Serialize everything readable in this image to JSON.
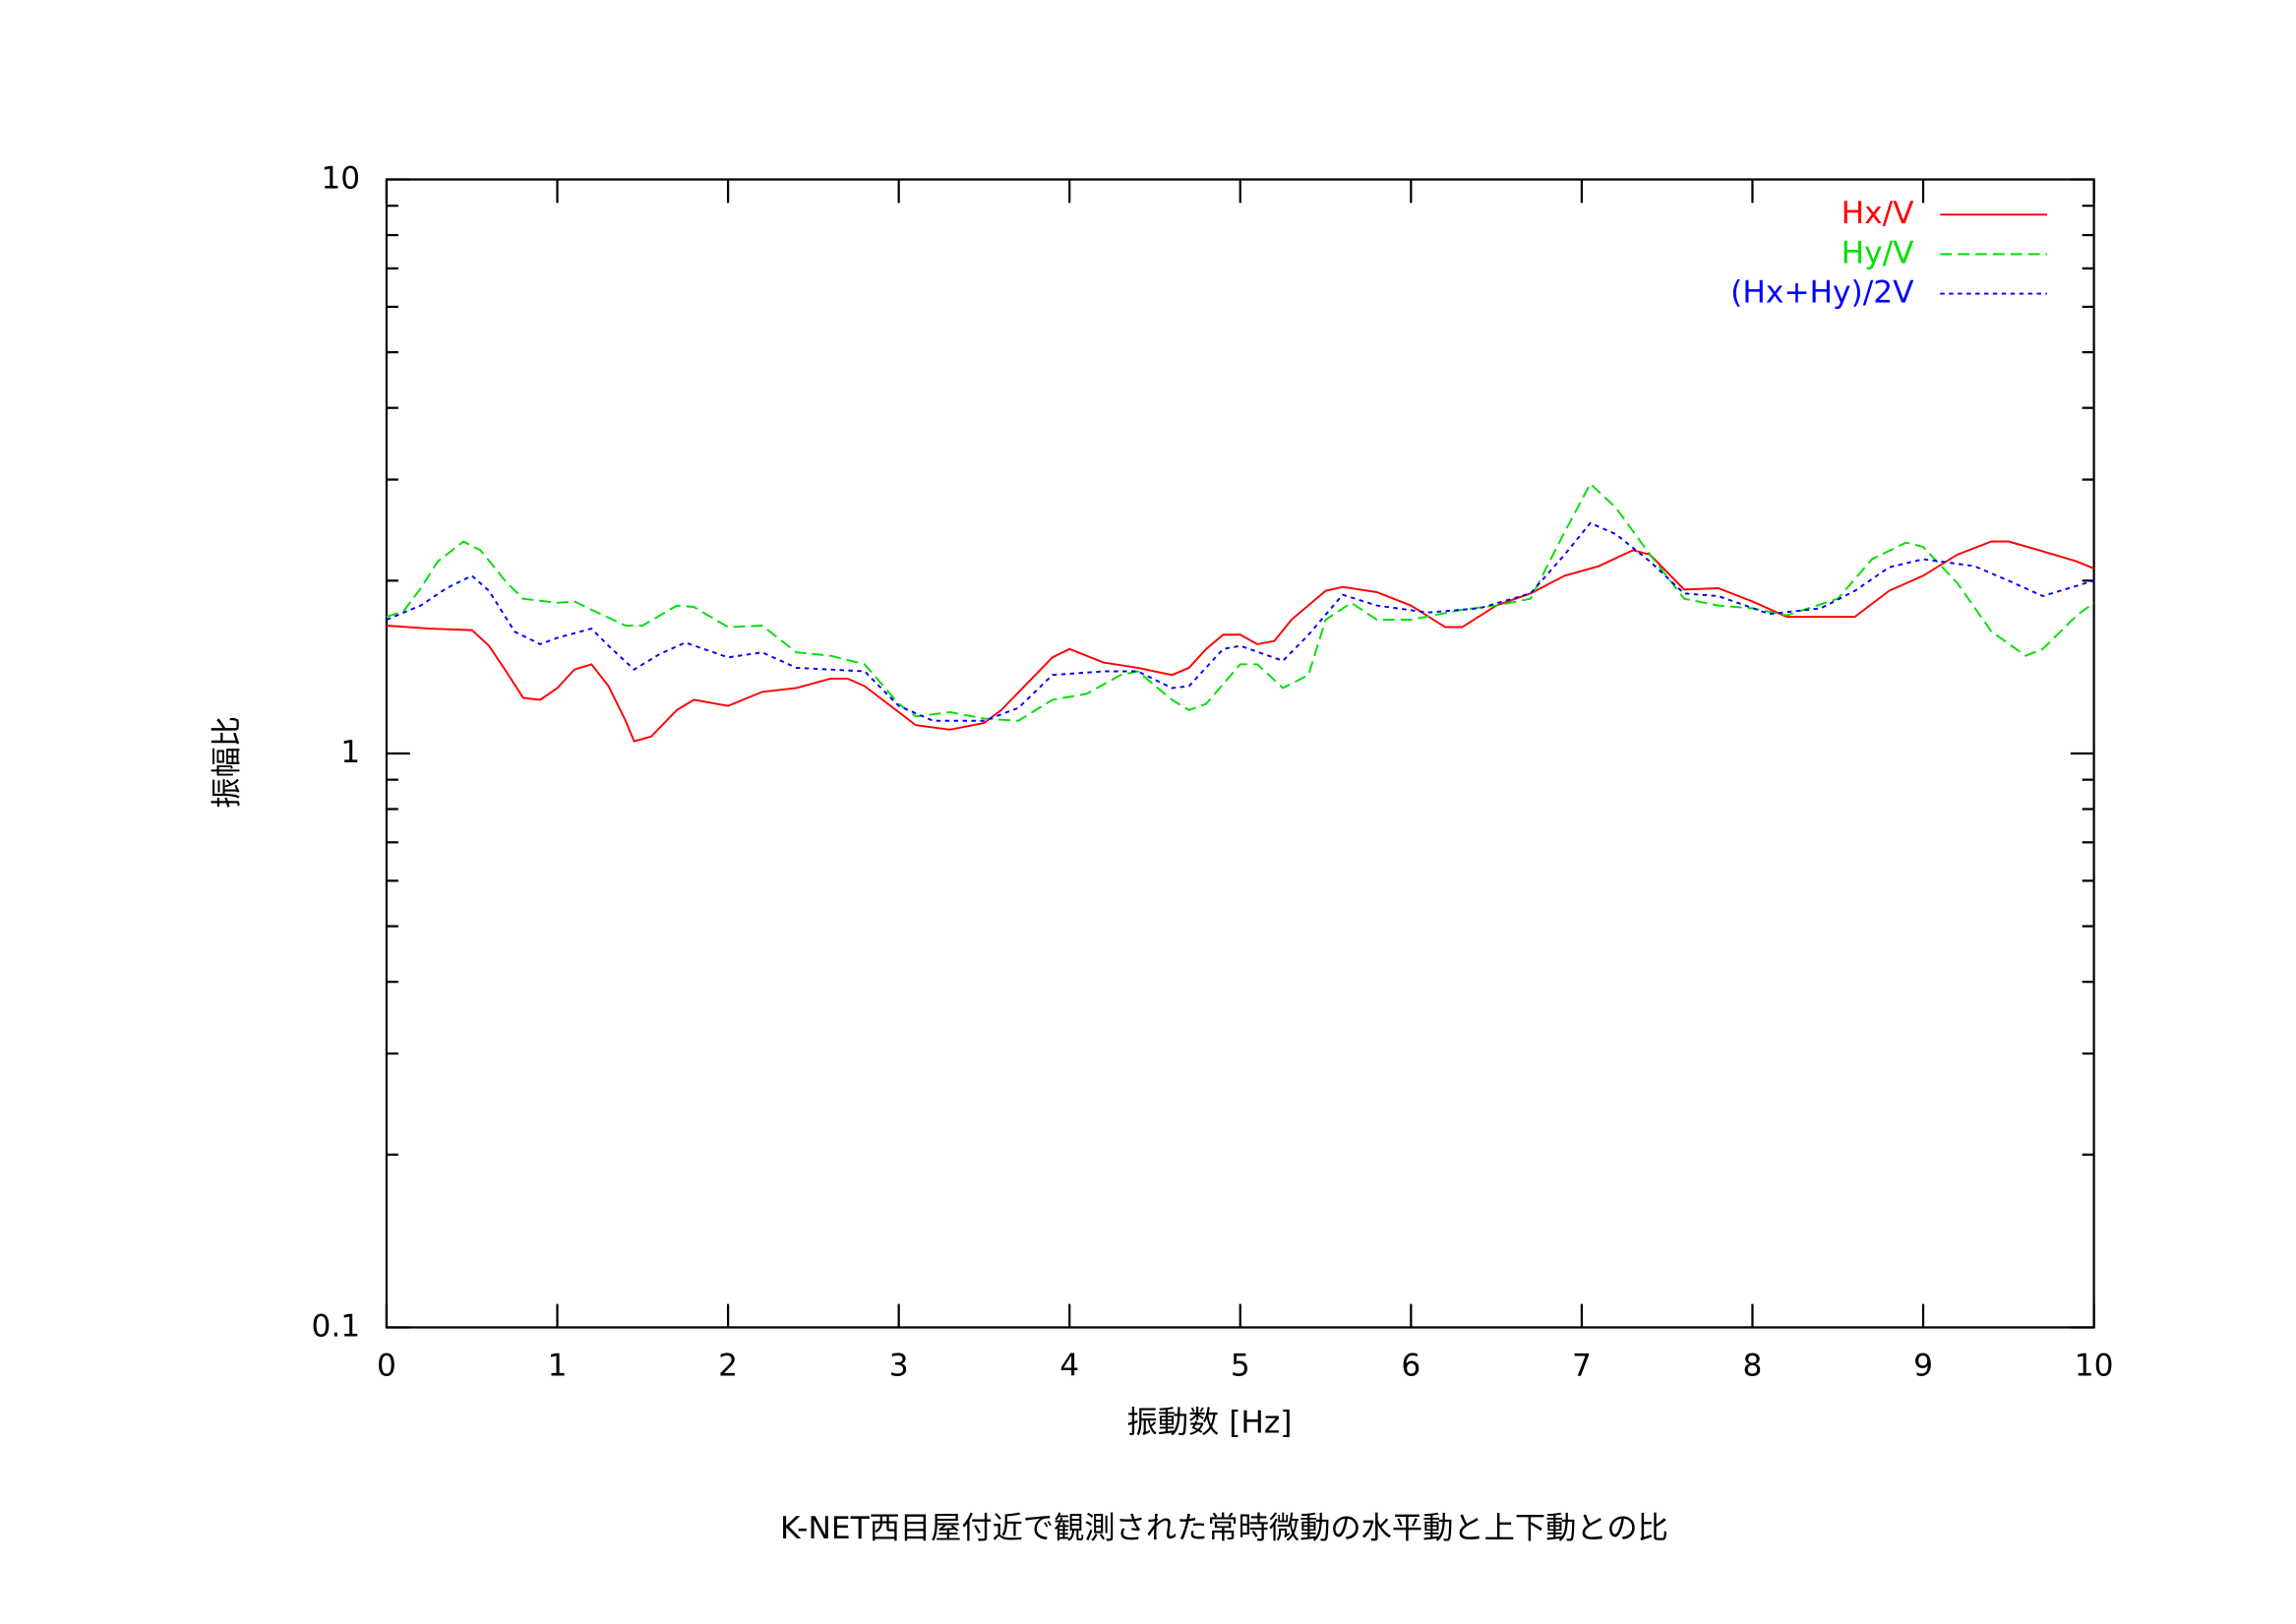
{
  "chart_data": {
    "type": "line",
    "xlabel": "振動数 [Hz]",
    "ylabel": "振幅比",
    "caption": "K-NET西目屋付近で観測された常時微動の水平動と上下動との比",
    "log_y": true,
    "legend": "top-right",
    "xlim": [
      0,
      10
    ],
    "xticks": [
      0,
      1,
      2,
      3,
      4,
      5,
      6,
      7,
      8,
      9,
      10
    ],
    "ylim": [
      0.1,
      10
    ],
    "yticks": [
      0.1,
      1,
      10
    ],
    "series": [
      {
        "name": "Hx/V",
        "color": "#ff0000",
        "line_style": "solid",
        "x": [
          0,
          0.25,
          0.5,
          0.6,
          0.7,
          0.8,
          0.9,
          1.0,
          1.1,
          1.2,
          1.3,
          1.4,
          1.45,
          1.55,
          1.7,
          1.8,
          2.0,
          2.2,
          2.4,
          2.6,
          2.7,
          2.8,
          3.0,
          3.1,
          3.3,
          3.5,
          3.6,
          3.8,
          3.9,
          4.0,
          4.2,
          4.4,
          4.6,
          4.7,
          4.8,
          4.9,
          5.0,
          5.1,
          5.2,
          5.3,
          5.5,
          5.6,
          5.8,
          6.0,
          6.2,
          6.3,
          6.5,
          6.7,
          6.9,
          7.1,
          7.3,
          7.4,
          7.6,
          7.8,
          8.0,
          8.2,
          8.4,
          8.6,
          8.8,
          9.0,
          9.2,
          9.4,
          9.5,
          9.7,
          9.9,
          10.0
        ],
        "values": [
          1.67,
          1.65,
          1.64,
          1.54,
          1.39,
          1.25,
          1.24,
          1.3,
          1.4,
          1.43,
          1.31,
          1.14,
          1.05,
          1.07,
          1.19,
          1.24,
          1.21,
          1.28,
          1.3,
          1.35,
          1.35,
          1.31,
          1.18,
          1.12,
          1.1,
          1.13,
          1.19,
          1.37,
          1.47,
          1.52,
          1.44,
          1.41,
          1.37,
          1.41,
          1.52,
          1.61,
          1.61,
          1.55,
          1.57,
          1.71,
          1.92,
          1.95,
          1.91,
          1.81,
          1.66,
          1.66,
          1.81,
          1.9,
          2.04,
          2.12,
          2.26,
          2.22,
          1.93,
          1.94,
          1.84,
          1.73,
          1.73,
          1.73,
          1.92,
          2.04,
          2.22,
          2.34,
          2.34,
          2.25,
          2.16,
          2.1
        ]
      },
      {
        "name": "Hy/V",
        "color": "#00e000",
        "line_style": "dashed",
        "x": [
          0,
          0.1,
          0.2,
          0.3,
          0.45,
          0.55,
          0.7,
          0.8,
          1.0,
          1.1,
          1.2,
          1.4,
          1.5,
          1.7,
          1.8,
          2.0,
          2.2,
          2.4,
          2.6,
          2.8,
          3.0,
          3.1,
          3.3,
          3.5,
          3.7,
          3.9,
          4.1,
          4.3,
          4.4,
          4.6,
          4.7,
          4.8,
          5.0,
          5.1,
          5.25,
          5.4,
          5.5,
          5.65,
          5.8,
          6.0,
          6.3,
          6.5,
          6.7,
          6.9,
          7.05,
          7.2,
          7.4,
          7.6,
          7.8,
          8.0,
          8.2,
          8.5,
          8.7,
          8.9,
          9.0,
          9.2,
          9.4,
          9.6,
          9.7,
          9.9,
          10.0
        ],
        "values": [
          1.73,
          1.77,
          1.94,
          2.16,
          2.34,
          2.26,
          1.99,
          1.86,
          1.83,
          1.84,
          1.78,
          1.67,
          1.67,
          1.81,
          1.8,
          1.66,
          1.67,
          1.5,
          1.48,
          1.43,
          1.22,
          1.16,
          1.18,
          1.15,
          1.14,
          1.24,
          1.27,
          1.37,
          1.39,
          1.24,
          1.19,
          1.22,
          1.43,
          1.43,
          1.3,
          1.37,
          1.71,
          1.83,
          1.71,
          1.71,
          1.78,
          1.81,
          1.86,
          2.43,
          2.95,
          2.68,
          2.22,
          1.86,
          1.81,
          1.79,
          1.74,
          1.86,
          2.18,
          2.33,
          2.29,
          1.98,
          1.63,
          1.48,
          1.52,
          1.74,
          1.83
        ]
      },
      {
        "name": "(Hx+Hy)/2V",
        "color": "#0000ff",
        "line_style": "dotted",
        "x": [
          0,
          0.2,
          0.35,
          0.5,
          0.6,
          0.75,
          0.9,
          1.0,
          1.2,
          1.3,
          1.45,
          1.6,
          1.75,
          2.0,
          2.2,
          2.4,
          2.8,
          3.0,
          3.2,
          3.5,
          3.7,
          3.9,
          4.2,
          4.4,
          4.6,
          4.7,
          4.9,
          5.0,
          5.25,
          5.4,
          5.6,
          5.8,
          6.1,
          6.4,
          6.7,
          6.9,
          7.05,
          7.2,
          7.4,
          7.6,
          7.8,
          8.1,
          8.4,
          8.6,
          8.8,
          9.0,
          9.3,
          9.5,
          9.7,
          10.0
        ],
        "values": [
          1.71,
          1.81,
          1.94,
          2.04,
          1.92,
          1.63,
          1.55,
          1.59,
          1.65,
          1.54,
          1.4,
          1.49,
          1.56,
          1.47,
          1.5,
          1.41,
          1.39,
          1.21,
          1.14,
          1.14,
          1.2,
          1.37,
          1.39,
          1.39,
          1.3,
          1.31,
          1.52,
          1.54,
          1.45,
          1.61,
          1.89,
          1.81,
          1.76,
          1.79,
          1.9,
          2.22,
          2.52,
          2.41,
          2.16,
          1.9,
          1.88,
          1.75,
          1.79,
          1.92,
          2.11,
          2.18,
          2.12,
          2.0,
          1.88,
          2.0
        ]
      }
    ]
  }
}
